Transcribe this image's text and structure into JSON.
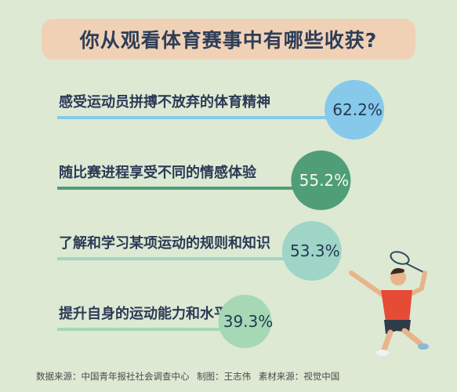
{
  "title": "你从观看体育赛事中有哪些收获?",
  "chart_data": {
    "type": "bar",
    "title": "你从观看体育赛事中有哪些收获?",
    "categories": [
      "感受运动员拼搏不放弃的体育精神",
      "随比赛进程享受不同的情感体验",
      "了解和学习某项运动的规则和知识",
      "提升自身的运动能力和水平"
    ],
    "values": [
      62.2,
      55.2,
      53.3,
      39.3
    ],
    "value_labels": [
      "62.2%",
      "55.2%",
      "53.3%",
      "39.3%"
    ],
    "colors": [
      "#86c9ea",
      "#4f9e78",
      "#9fd5c7",
      "#a6d8b5"
    ],
    "xlim": [
      0,
      70
    ]
  },
  "footer": {
    "source": "数据来源：中国青年报社社会调查中心",
    "made_by": "制图：王志伟",
    "material": "素材来源：视觉中国"
  },
  "illustration": "badminton-player"
}
